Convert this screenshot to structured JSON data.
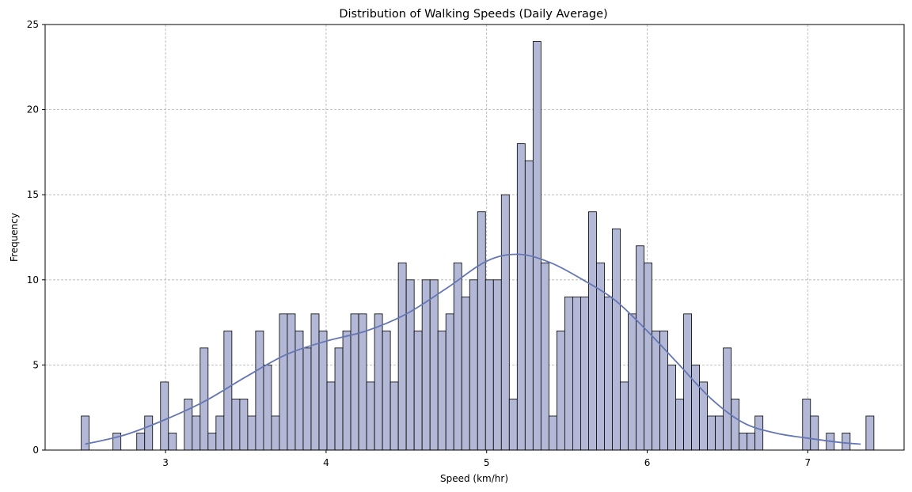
{
  "chart_data": {
    "type": "bar",
    "title": "Distribution of Walking Speeds (Daily Average)",
    "xlabel": "Speed (km/hr)",
    "ylabel": "Frequency",
    "xlim": [
      2.25,
      7.6
    ],
    "ylim": [
      0,
      25
    ],
    "xticks": [
      3,
      4,
      5,
      6,
      7
    ],
    "yticks": [
      0,
      5,
      10,
      15,
      20,
      25
    ],
    "grid": true,
    "bin_start": 2.475,
    "bin_width": 0.04937,
    "values": [
      2,
      0,
      0,
      0,
      1,
      0,
      0,
      1,
      2,
      0,
      4,
      1,
      0,
      3,
      2,
      6,
      1,
      2,
      7,
      3,
      3,
      2,
      7,
      5,
      2,
      8,
      8,
      7,
      6,
      8,
      7,
      4,
      6,
      7,
      8,
      8,
      4,
      8,
      7,
      4,
      11,
      10,
      7,
      10,
      10,
      7,
      8,
      11,
      9,
      10,
      14,
      10,
      10,
      15,
      3,
      18,
      17,
      24,
      11,
      2,
      7,
      9,
      9,
      9,
      14,
      11,
      9,
      13,
      4,
      8,
      12,
      11,
      7,
      7,
      5,
      3,
      8,
      5,
      4,
      2,
      2,
      6,
      3,
      1,
      1,
      2,
      0,
      0,
      0,
      0,
      0,
      3,
      2,
      0,
      1,
      0,
      1,
      0,
      0,
      2
    ],
    "kde": {
      "x": [
        2.5,
        2.75,
        3.0,
        3.25,
        3.5,
        3.75,
        4.0,
        4.25,
        4.5,
        4.75,
        5.0,
        5.2,
        5.4,
        5.6,
        5.8,
        6.0,
        6.2,
        6.4,
        6.6,
        6.8,
        7.0,
        7.2,
        7.33
      ],
      "y": [
        0.35,
        0.9,
        1.8,
        2.9,
        4.3,
        5.6,
        6.4,
        7.0,
        8.0,
        9.5,
        11.1,
        11.5,
        11.0,
        10.0,
        8.8,
        7.0,
        5.0,
        3.0,
        1.6,
        1.0,
        0.7,
        0.45,
        0.35
      ]
    },
    "colors": {
      "bar_fill": "#b2b8d5",
      "bar_edge": "#000000",
      "kde_line": "#6576b4",
      "grid": "#b0b0b0"
    }
  }
}
